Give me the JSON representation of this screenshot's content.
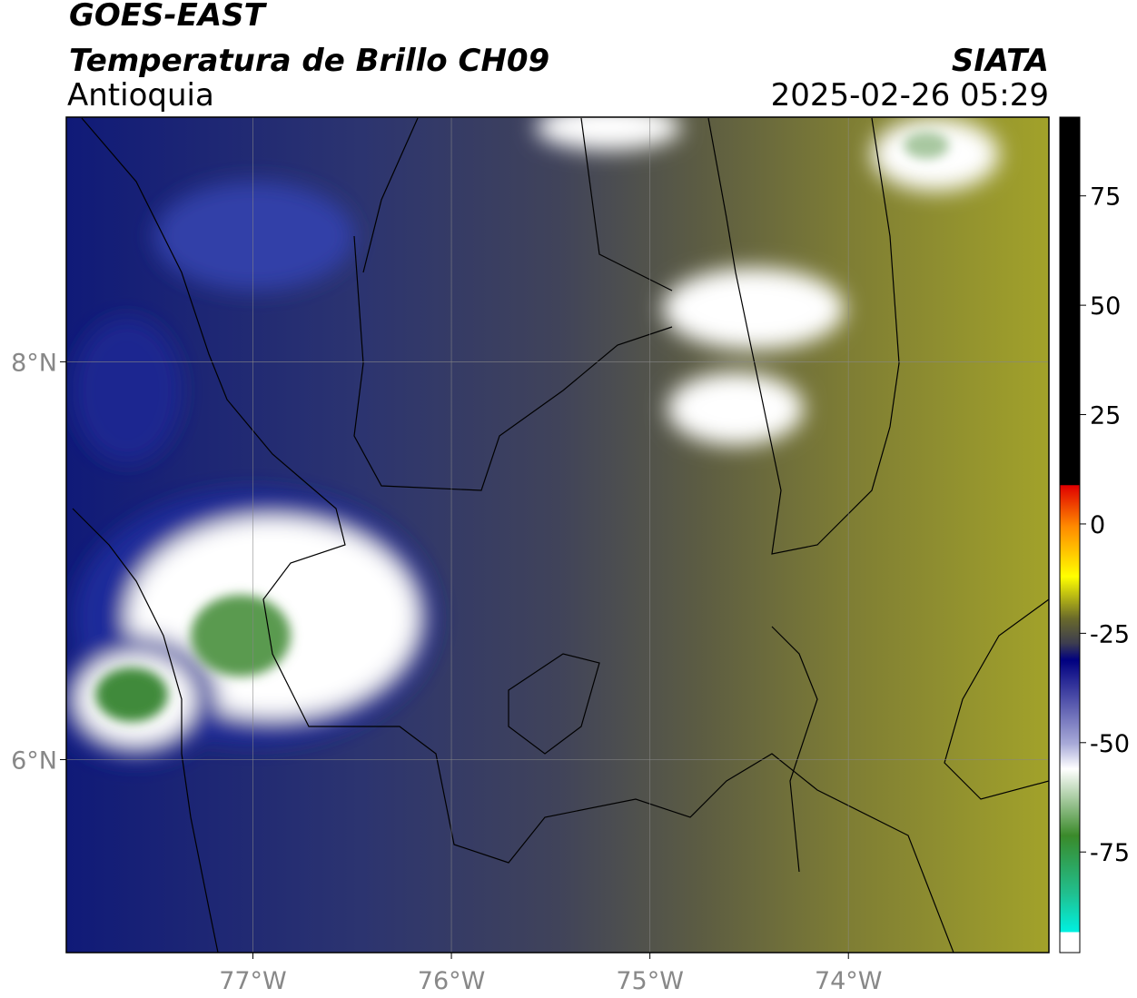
{
  "header": {
    "satellite": "GOES-EAST",
    "title": "Temperatura de Brillo CH09",
    "region": "Antioquia",
    "org": "SIATA",
    "datetime": "2025-02-26 05:29"
  },
  "map": {
    "xlim": [
      -77.94,
      -72.99
    ],
    "ylim": [
      5.03,
      9.23
    ],
    "xticks": [
      {
        "value": -77,
        "label": "77°W"
      },
      {
        "value": -76,
        "label": "76°W"
      },
      {
        "value": -75,
        "label": "75°W"
      },
      {
        "value": -74,
        "label": "74°W"
      }
    ],
    "yticks": [
      {
        "value": 8,
        "label": "8°N"
      },
      {
        "value": 6,
        "label": "6°N"
      }
    ],
    "grid": true
  },
  "colorbar": {
    "range": [
      -98,
      93
    ],
    "ticks": [
      75,
      50,
      25,
      0,
      -25,
      -50,
      -75
    ]
  }
}
